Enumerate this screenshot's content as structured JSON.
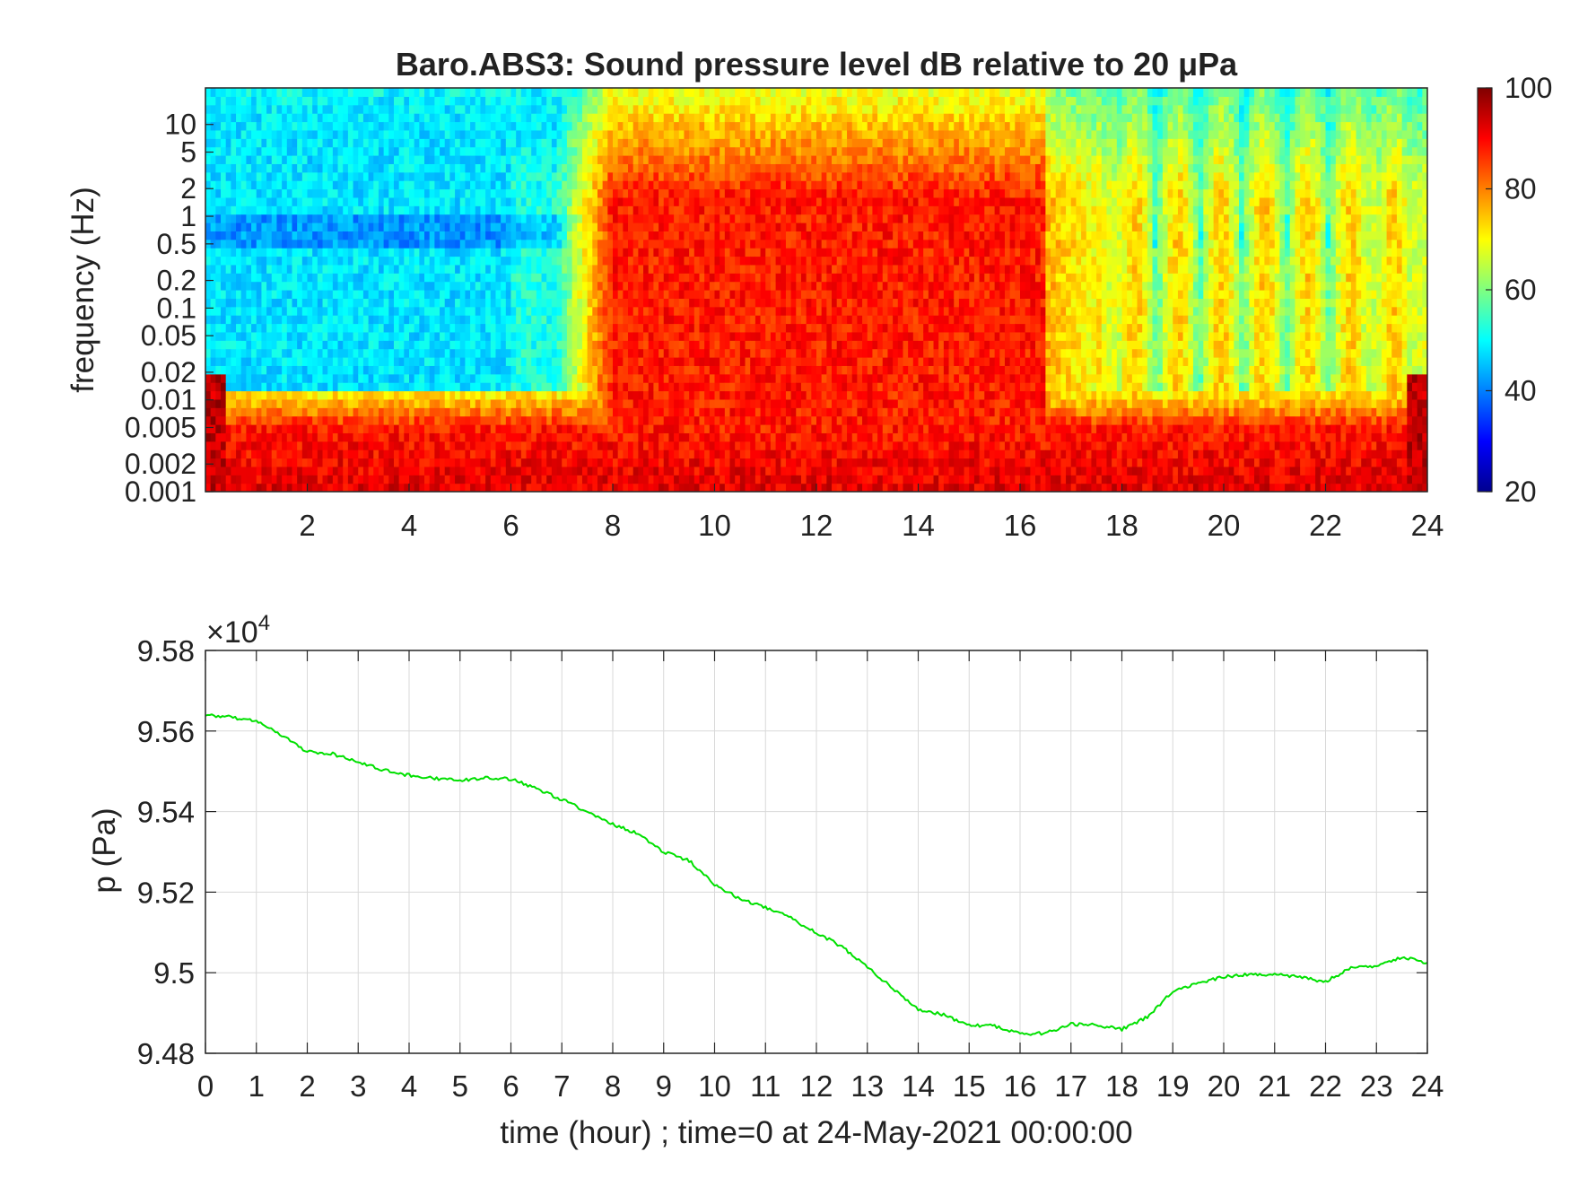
{
  "figure": {
    "colors": {
      "line": "#00e000",
      "axis": "#262626",
      "grid": "#d9d9d9",
      "background": "#ffffff"
    }
  },
  "chart_data": [
    {
      "type": "heatmap",
      "title": "Baro.ABS3: Sound pressure level dB relative to 20 μPa",
      "xlabel": "",
      "ylabel": "frequency (Hz)",
      "xlim": [
        0,
        24
      ],
      "x_ticks": [
        2,
        4,
        6,
        8,
        10,
        12,
        14,
        16,
        18,
        20,
        22,
        24
      ],
      "y_scale": "log",
      "ylim": [
        0.001,
        25
      ],
      "y_ticks": [
        0.001,
        0.002,
        0.005,
        0.01,
        0.02,
        0.05,
        0.1,
        0.2,
        0.5,
        1,
        2,
        5,
        10
      ],
      "y_tick_labels": [
        "0.001",
        "0.002",
        "0.005",
        "0.01",
        "0.02",
        "0.05",
        "0.1",
        "0.2",
        "0.5",
        "1",
        "2",
        "5",
        "10"
      ],
      "colormap": "jet",
      "colorbar": {
        "range": [
          20,
          100
        ],
        "ticks": [
          20,
          40,
          60,
          80,
          100
        ]
      },
      "grid": false,
      "description_of_field": {
        "hot_hours": [
          8,
          16.5
        ],
        "quiet_hours": [
          [
            0,
            6
          ],
          [
            16.5,
            24
          ]
        ],
        "low_freq_band_db": 90,
        "high_freq_band_db": 50
      }
    },
    {
      "type": "line",
      "title": "",
      "xlabel": "time (hour) ; time=0 at 24-May-2021 00:00:00",
      "ylabel": "p (Pa)",
      "y_multiplier_label": "×10",
      "y_multiplier_exp": "4",
      "xlim": [
        0,
        24
      ],
      "ylim": [
        94800,
        95800
      ],
      "x_ticks": [
        0,
        1,
        2,
        3,
        4,
        5,
        6,
        7,
        8,
        9,
        10,
        11,
        12,
        13,
        14,
        15,
        16,
        17,
        18,
        19,
        20,
        21,
        22,
        23,
        24
      ],
      "y_ticks": [
        94800,
        95000,
        95200,
        95400,
        95600,
        95800
      ],
      "y_tick_labels": [
        "9.48",
        "9.5",
        "9.52",
        "9.54",
        "9.56",
        "9.58"
      ],
      "grid": true,
      "series": [
        {
          "color": "#00e000",
          "x": [
            0,
            0.5,
            1,
            1.5,
            2,
            2.5,
            3,
            3.5,
            4,
            4.5,
            5,
            5.5,
            6,
            6.5,
            7,
            7.5,
            8,
            8.5,
            9,
            9.5,
            10,
            10.5,
            11,
            11.5,
            12,
            12.5,
            13,
            13.5,
            14,
            14.5,
            15,
            15.5,
            16,
            16.5,
            17,
            17.5,
            18,
            18.5,
            19,
            19.5,
            20,
            20.5,
            21,
            21.5,
            22,
            22.5,
            23,
            23.5,
            24
          ],
          "values": [
            95641,
            95634,
            95625,
            95590,
            95548,
            95543,
            95523,
            95503,
            95490,
            95483,
            95477,
            95485,
            95481,
            95457,
            95430,
            95400,
            95368,
            95345,
            95300,
            95278,
            95220,
            95183,
            95163,
            95135,
            95100,
            95065,
            95015,
            94960,
            94910,
            94895,
            94870,
            94868,
            94848,
            94850,
            94872,
            94870,
            94860,
            94890,
            94955,
            94975,
            94990,
            94997,
            94996,
            94989,
            94978,
            95012,
            95015,
            95038,
            95025
          ]
        }
      ]
    }
  ]
}
